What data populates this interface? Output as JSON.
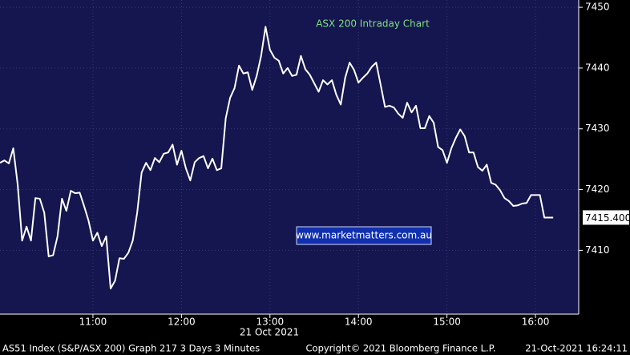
{
  "chart_data": {
    "type": "line",
    "title": "ASX 200 Intraday Chart",
    "watermark": "www.marketmatters.com.au",
    "date_label": "21 Oct 2021",
    "footer": {
      "left": "AS51 Index (S&P/ASX 200) Graph 217 3 Days 3 Minutes",
      "center": "Copyright© 2021 Bloomberg Finance L.P.",
      "right": "21-Oct-2021 16:24:11"
    },
    "x": [
      597,
      600,
      603,
      606,
      609,
      612,
      615,
      618,
      621,
      624,
      627,
      630,
      633,
      636,
      639,
      642,
      645,
      648,
      651,
      654,
      657,
      660,
      663,
      666,
      669,
      672,
      675,
      678,
      681,
      684,
      687,
      690,
      693,
      696,
      699,
      702,
      705,
      708,
      711,
      714,
      717,
      720,
      723,
      726,
      729,
      732,
      735,
      738,
      741,
      744,
      747,
      750,
      753,
      756,
      759,
      762,
      765,
      768,
      771,
      774,
      777,
      780,
      783,
      786,
      789,
      792,
      795,
      798,
      801,
      804,
      807,
      810,
      813,
      816,
      819,
      822,
      825,
      828,
      831,
      834,
      837,
      840,
      843,
      846,
      849,
      852,
      855,
      858,
      861,
      864,
      867,
      870,
      873,
      876,
      879,
      882,
      885,
      888,
      891,
      894,
      897,
      900,
      903,
      906,
      909,
      912,
      915,
      918,
      921,
      924,
      927,
      930,
      933,
      936,
      939,
      942,
      945,
      948,
      951,
      954,
      957,
      960,
      963,
      966,
      969,
      972
    ],
    "series": [
      {
        "name": "AS51 Index",
        "color": "#ffffff",
        "values": [
          7424.4,
          7424.8,
          7424.3,
          7426.8,
          7420.8,
          7411.6,
          7413.9,
          7411.6,
          7418.6,
          7418.5,
          7416.2,
          7409.0,
          7409.2,
          7412.3,
          7418.5,
          7416.5,
          7419.8,
          7419.4,
          7419.5,
          7417.3,
          7414.9,
          7411.6,
          7412.9,
          7410.7,
          7412.3,
          7403.7,
          7405.0,
          7408.7,
          7408.6,
          7409.6,
          7411.6,
          7416.2,
          7422.8,
          7424.4,
          7423.2,
          7425.2,
          7424.5,
          7425.9,
          7426.1,
          7427.4,
          7424.1,
          7426.4,
          7423.5,
          7421.5,
          7424.5,
          7425.2,
          7425.5,
          7423.5,
          7425.1,
          7423.2,
          7423.5,
          7431.7,
          7435.1,
          7436.7,
          7440.4,
          7439.1,
          7439.3,
          7436.4,
          7438.7,
          7442.0,
          7446.8,
          7443.0,
          7441.7,
          7441.2,
          7439.1,
          7440.0,
          7438.7,
          7438.9,
          7442.0,
          7439.8,
          7438.9,
          7437.5,
          7436.1,
          7438.0,
          7437.3,
          7438.0,
          7435.6,
          7434.0,
          7438.4,
          7440.9,
          7439.7,
          7437.6,
          7438.4,
          7439.1,
          7440.2,
          7440.9,
          7437.3,
          7433.6,
          7433.8,
          7433.5,
          7432.5,
          7431.8,
          7434.3,
          7432.7,
          7433.8,
          7430.1,
          7430.1,
          7432.1,
          7431.0,
          7427.0,
          7426.5,
          7424.4,
          7426.8,
          7428.5,
          7429.9,
          7428.8,
          7426.1,
          7426.1,
          7423.7,
          7423.1,
          7424.1,
          7421.1,
          7420.8,
          7419.9,
          7418.6,
          7418.1,
          7417.3,
          7417.4,
          7417.7,
          7417.8,
          7419.1,
          7419.1,
          7419.1,
          7415.4,
          7415.4,
          7415.4
        ]
      }
    ],
    "last_price": {
      "value": 7415.4,
      "label": "7415.400"
    },
    "xlim": [
      597,
      989.3
    ],
    "xticks": [
      {
        "value": 660,
        "label": "11:00"
      },
      {
        "value": 720,
        "label": "12:00"
      },
      {
        "value": 780,
        "label": "13:00"
      },
      {
        "value": 840,
        "label": "14:00"
      },
      {
        "value": 900,
        "label": "15:00"
      },
      {
        "value": 960,
        "label": "16:00"
      }
    ],
    "ylim": [
      7399.5,
      7451.2
    ],
    "yticks": [
      7410,
      7420,
      7430,
      7440,
      7450
    ],
    "grid": true,
    "background": "#15154f"
  }
}
